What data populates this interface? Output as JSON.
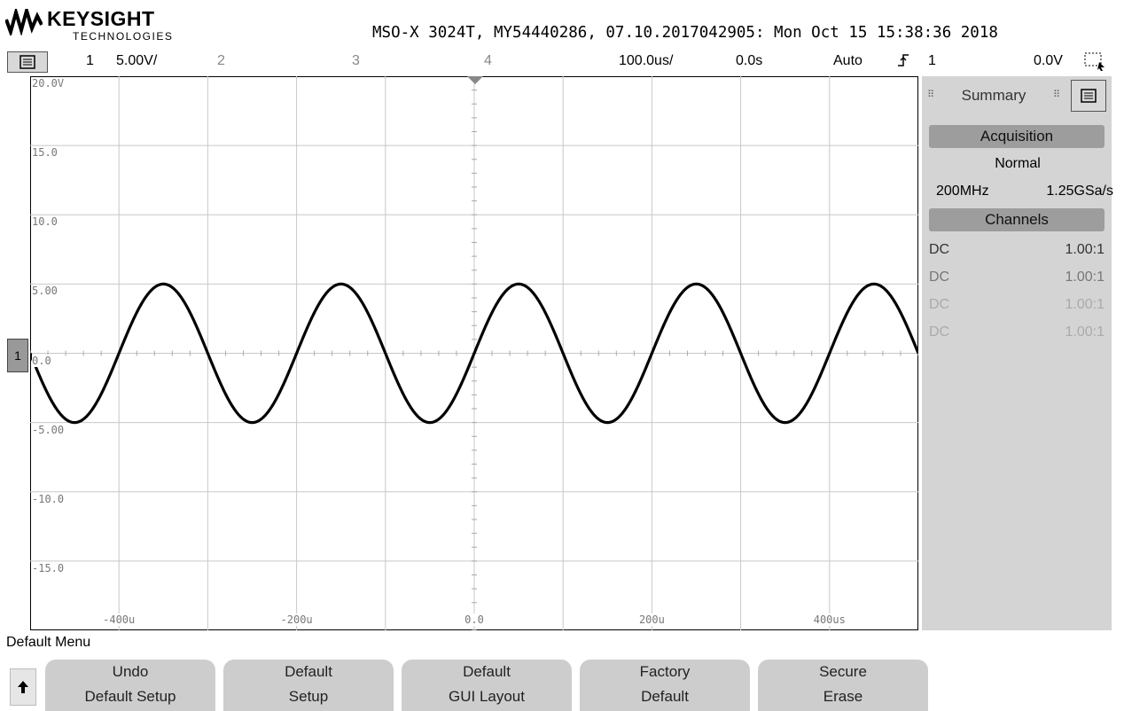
{
  "header": {
    "brand": "KEYSIGHT",
    "brand_sub": "TECHNOLOGIES",
    "instrument_line": "MSO-X 3024T, MY54440286, 07.10.2017042905: Mon Oct 15 15:38:36 2018"
  },
  "control_bar": {
    "ch1": "1",
    "ch1_scale": "5.00V/",
    "ch2": "2",
    "ch3": "3",
    "ch4": "4",
    "timebase": "100.0us/",
    "delay": "0.0s",
    "trigger_mode": "Auto",
    "trigger_source": "1",
    "trigger_level": "0.0V"
  },
  "graticule": {
    "y_labels": [
      "20.0V",
      "15.0",
      "10.0",
      "5.00",
      "0.0",
      "-5.00",
      "-10.0",
      "-15.0"
    ],
    "x_labels": [
      "-400u",
      "-200u",
      "0.0",
      "200u",
      "400us"
    ],
    "channel_marker": "1"
  },
  "chart_data": {
    "type": "line",
    "series": [
      {
        "period_s": 0.0002,
        "amplitude_V": 5.0,
        "offset_V": 0.0,
        "phase": "rising zero crossing at t=0"
      }
    ],
    "xlim_s": [
      -0.0005,
      0.0005
    ],
    "ylim_V": [
      -20,
      20
    ],
    "grid": true,
    "color": "#000000"
  },
  "summary_panel": {
    "tab": "Summary",
    "acquisition_header": "Acquisition",
    "acq_mode": "Normal",
    "bandwidth": "200MHz",
    "sample_rate": "1.25GSa/s",
    "channels_header": "Channels",
    "channels": [
      {
        "coupling": "DC",
        "probe": "1.00:1",
        "color": "#333333"
      },
      {
        "coupling": "DC",
        "probe": "1.00:1",
        "color": "#777777"
      },
      {
        "coupling": "DC",
        "probe": "1.00:1",
        "color": "#aaaaaa"
      },
      {
        "coupling": "DC",
        "probe": "1.00:1",
        "color": "#aaaaaa"
      }
    ]
  },
  "softkeys": {
    "menu_title": "Default Menu",
    "keys": [
      {
        "line1": "Undo",
        "line2": "Default Setup"
      },
      {
        "line1": "Default",
        "line2": "Setup"
      },
      {
        "line1": "Default",
        "line2": "GUI Layout"
      },
      {
        "line1": "Factory",
        "line2": "Default"
      },
      {
        "line1": "Secure",
        "line2": "Erase"
      }
    ]
  }
}
